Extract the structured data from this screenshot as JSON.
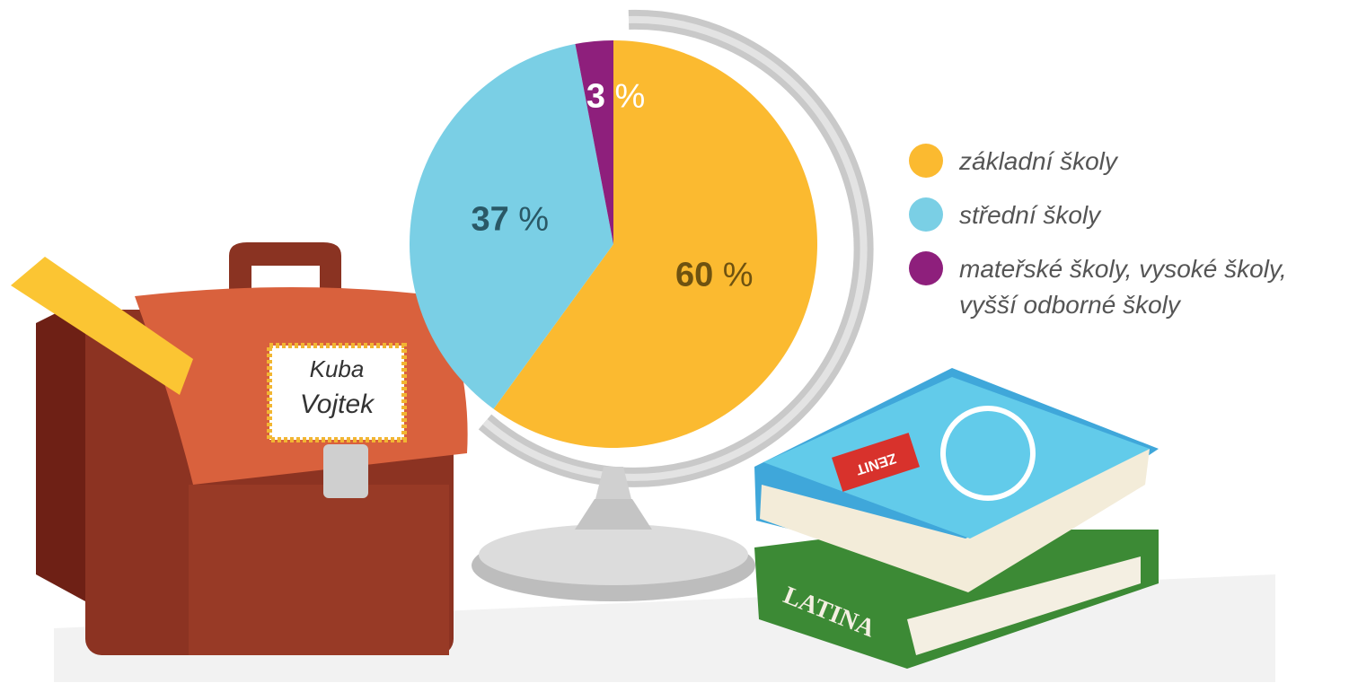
{
  "chart_data": {
    "type": "pie",
    "categories": [
      "základní školy",
      "střední školy",
      "mateřské školy, vysoké školy, vyšší odborné školy"
    ],
    "values": [
      60,
      37,
      3
    ],
    "value_labels": [
      "60 %",
      "37 %",
      "3 %"
    ],
    "colors": [
      "#fbba30",
      "#7acfe5",
      "#8e1f7c"
    ],
    "label_colors": [
      "#6e5210",
      "#2a5866",
      "#ffffff"
    ],
    "legend": "right"
  },
  "illustration": {
    "name_tag": [
      "Kuba",
      "Vojtek"
    ],
    "book_title": "LATINA",
    "magazine": "ZENIT"
  }
}
